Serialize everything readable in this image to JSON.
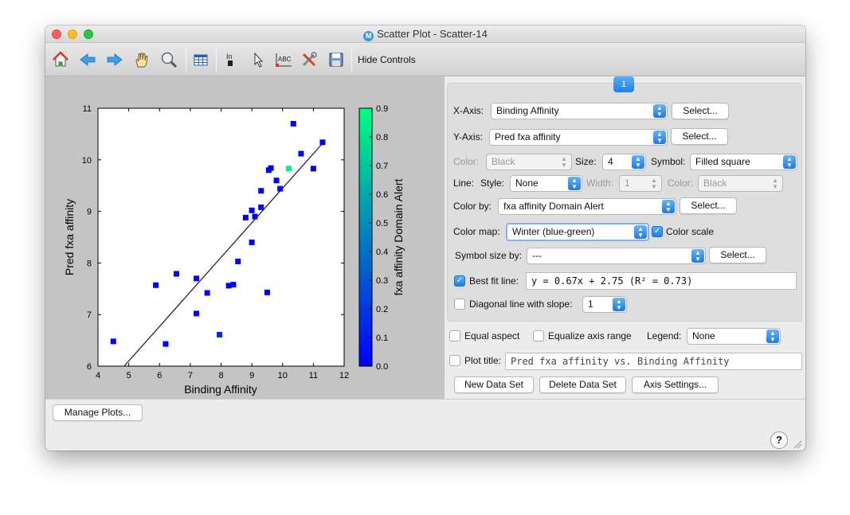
{
  "window": {
    "title": "Scatter Plot - Scatter-14",
    "app_icon_letter": "M"
  },
  "toolbar": {
    "icons": [
      "home-icon",
      "back-arrow-icon",
      "forward-arrow-icon",
      "pan-hand-icon",
      "zoom-icon",
      "table-icon",
      "text-insert-icon",
      "pointer-icon",
      "abc-label-icon",
      "tools-icon",
      "save-icon"
    ],
    "hide_controls": "Hide Controls"
  },
  "tab": {
    "label": "1"
  },
  "controls": {
    "x_axis_label": "X-Axis:",
    "x_axis_value": "Binding Affinity",
    "y_axis_label": "Y-Axis:",
    "y_axis_value": "Pred fxa affinity",
    "select_label": "Select...",
    "color_label": "Color:",
    "color_value": "Black",
    "size_label": "Size:",
    "size_value": "4",
    "symbol_label": "Symbol:",
    "symbol_value": "Filled square",
    "line_label": "Line:",
    "style_label": "Style:",
    "style_value": "None",
    "width_label": "Width:",
    "width_value": "1",
    "line_color_label": "Color:",
    "line_color_value": "Black",
    "color_by_label": "Color by:",
    "color_by_value": "fxa affinity Domain Alert",
    "color_map_label": "Color map:",
    "color_map_value": "Winter (blue-green)",
    "color_scale_label": "Color scale",
    "color_scale_checked": true,
    "symbol_size_by_label": "Symbol size by:",
    "symbol_size_by_value": "---",
    "best_fit_label": "Best fit line:",
    "best_fit_checked": true,
    "best_fit_equation": "y = 0.67x + 2.75 (R² = 0.73)",
    "diagonal_label": "Diagonal line with slope:",
    "diagonal_checked": false,
    "diagonal_value": "1"
  },
  "options": {
    "equal_aspect_label": "Equal aspect",
    "equalize_label": "Equalize axis range",
    "legend_label": "Legend:",
    "legend_value": "None",
    "plot_title_label": "Plot title:",
    "plot_title_value": "Pred fxa affinity vs. Binding Affinity"
  },
  "actions": {
    "new_data_set": "New Data Set",
    "delete_data_set": "Delete Data Set",
    "axis_settings": "Axis Settings..."
  },
  "bottom": {
    "manage_plots": "Manage Plots...",
    "help": "?"
  },
  "chart_data": {
    "type": "scatter",
    "xlabel": "Binding Affinity",
    "ylabel": "Pred fxa affinity",
    "xlim": [
      4,
      12
    ],
    "ylim": [
      6,
      11
    ],
    "xticks": [
      "4",
      "5",
      "6",
      "7",
      "8",
      "9",
      "10",
      "11",
      "12"
    ],
    "yticks": [
      "6",
      "7",
      "8",
      "9",
      "10",
      "11"
    ],
    "colorbar_label": "fxa affinity Domain Alert",
    "colorbar_range": [
      0.0,
      0.9
    ],
    "colorbar_ticks": [
      "0.0",
      "0.1",
      "0.2",
      "0.3",
      "0.4",
      "0.5",
      "0.6",
      "0.7",
      "0.8",
      "0.9"
    ],
    "colormap": [
      "#0000ff",
      "#00ff80"
    ],
    "points": [
      {
        "x": 4.5,
        "y": 6.48,
        "c": 0.0
      },
      {
        "x": 5.88,
        "y": 7.57,
        "c": 0.0
      },
      {
        "x": 6.2,
        "y": 6.43,
        "c": 0.0
      },
      {
        "x": 6.55,
        "y": 7.79,
        "c": 0.0
      },
      {
        "x": 7.2,
        "y": 7.7,
        "c": 0.0
      },
      {
        "x": 7.2,
        "y": 7.02,
        "c": 0.0
      },
      {
        "x": 7.55,
        "y": 7.42,
        "c": 0.0
      },
      {
        "x": 7.95,
        "y": 6.61,
        "c": 0.15
      },
      {
        "x": 8.25,
        "y": 7.56,
        "c": 0.0
      },
      {
        "x": 8.4,
        "y": 7.58,
        "c": 0.0
      },
      {
        "x": 8.55,
        "y": 8.03,
        "c": 0.0
      },
      {
        "x": 8.8,
        "y": 8.88,
        "c": 0.0
      },
      {
        "x": 9.0,
        "y": 9.02,
        "c": 0.0
      },
      {
        "x": 9.0,
        "y": 8.4,
        "c": 0.0
      },
      {
        "x": 9.1,
        "y": 8.9,
        "c": 0.0
      },
      {
        "x": 9.3,
        "y": 9.08,
        "c": 0.0
      },
      {
        "x": 9.3,
        "y": 9.4,
        "c": 0.0
      },
      {
        "x": 9.5,
        "y": 7.43,
        "c": 0.0
      },
      {
        "x": 9.55,
        "y": 9.8,
        "c": 0.0
      },
      {
        "x": 9.62,
        "y": 9.84,
        "c": 0.0
      },
      {
        "x": 9.8,
        "y": 9.6,
        "c": 0.0
      },
      {
        "x": 9.92,
        "y": 9.44,
        "c": 0.0
      },
      {
        "x": 10.2,
        "y": 9.83,
        "c": 0.85
      },
      {
        "x": 10.35,
        "y": 10.7,
        "c": 0.0
      },
      {
        "x": 10.6,
        "y": 10.12,
        "c": 0.0
      },
      {
        "x": 11.0,
        "y": 9.83,
        "c": 0.0
      },
      {
        "x": 11.3,
        "y": 10.34,
        "c": 0.0
      }
    ],
    "fit_line": {
      "slope": 0.67,
      "intercept": 2.75
    },
    "grid": false,
    "legend": "none"
  }
}
